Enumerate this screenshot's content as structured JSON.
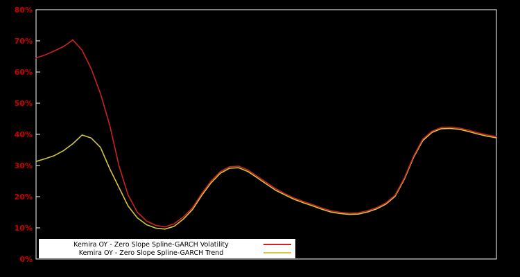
{
  "chart_data": {
    "type": "line",
    "title": "",
    "background_color": "#000000",
    "frame_color": "#ffffff",
    "axis_label_color": "#cc0000",
    "grid": false,
    "xlim": [
      0,
      1
    ],
    "ylim": [
      0,
      80
    ],
    "ytick_step": 10,
    "ytick_labels": [
      "0%",
      "10%",
      "20%",
      "30%",
      "40%",
      "50%",
      "60%",
      "70%",
      "80%"
    ],
    "xtick_labels": [],
    "x": [
      0.0,
      0.02,
      0.04,
      0.06,
      0.08,
      0.1,
      0.12,
      0.14,
      0.16,
      0.18,
      0.2,
      0.22,
      0.24,
      0.26,
      0.28,
      0.3,
      0.32,
      0.34,
      0.36,
      0.38,
      0.4,
      0.42,
      0.44,
      0.46,
      0.48,
      0.5,
      0.52,
      0.54,
      0.56,
      0.58,
      0.6,
      0.62,
      0.64,
      0.66,
      0.68,
      0.7,
      0.72,
      0.74,
      0.76,
      0.78,
      0.8,
      0.82,
      0.84,
      0.86,
      0.88,
      0.9,
      0.92,
      0.94,
      0.96,
      0.98,
      1.0
    ],
    "series": [
      {
        "name": "Kemira OY - Zero Slope Spline-GARCH Volatility",
        "color": "#cc2222",
        "values": [
          64.5,
          65.5,
          66.8,
          68.2,
          70.3,
          67.0,
          61.0,
          53.0,
          43.0,
          30.0,
          20.5,
          15.0,
          12.2,
          10.8,
          10.3,
          11.3,
          13.5,
          16.5,
          21.0,
          25.0,
          28.0,
          29.6,
          29.8,
          28.6,
          26.6,
          24.6,
          22.6,
          21.0,
          19.6,
          18.5,
          17.5,
          16.4,
          15.5,
          15.0,
          14.7,
          14.8,
          15.5,
          16.5,
          18.0,
          20.5,
          26.0,
          33.0,
          38.5,
          41.0,
          42.2,
          42.3,
          42.0,
          41.3,
          40.5,
          39.8,
          39.3
        ]
      },
      {
        "name": "Kemira OY - Zero Slope Spline-GARCH Trend",
        "color": "#d4c542",
        "values": [
          31.3,
          32.2,
          33.2,
          34.8,
          37.0,
          39.8,
          38.8,
          35.8,
          29.0,
          23.0,
          17.0,
          13.2,
          11.0,
          9.9,
          9.6,
          10.5,
          12.8,
          15.9,
          20.4,
          24.4,
          27.5,
          29.1,
          29.3,
          28.1,
          26.1,
          24.1,
          22.1,
          20.6,
          19.2,
          18.1,
          17.1,
          16.0,
          15.1,
          14.6,
          14.3,
          14.4,
          15.1,
          16.1,
          17.6,
          20.1,
          25.6,
          32.6,
          38.0,
          40.6,
          41.8,
          41.9,
          41.6,
          40.9,
          40.1,
          39.4,
          38.9
        ]
      }
    ],
    "legend": {
      "position": "bottom-left",
      "background": "#ffffff",
      "text_color": "#000000"
    }
  }
}
